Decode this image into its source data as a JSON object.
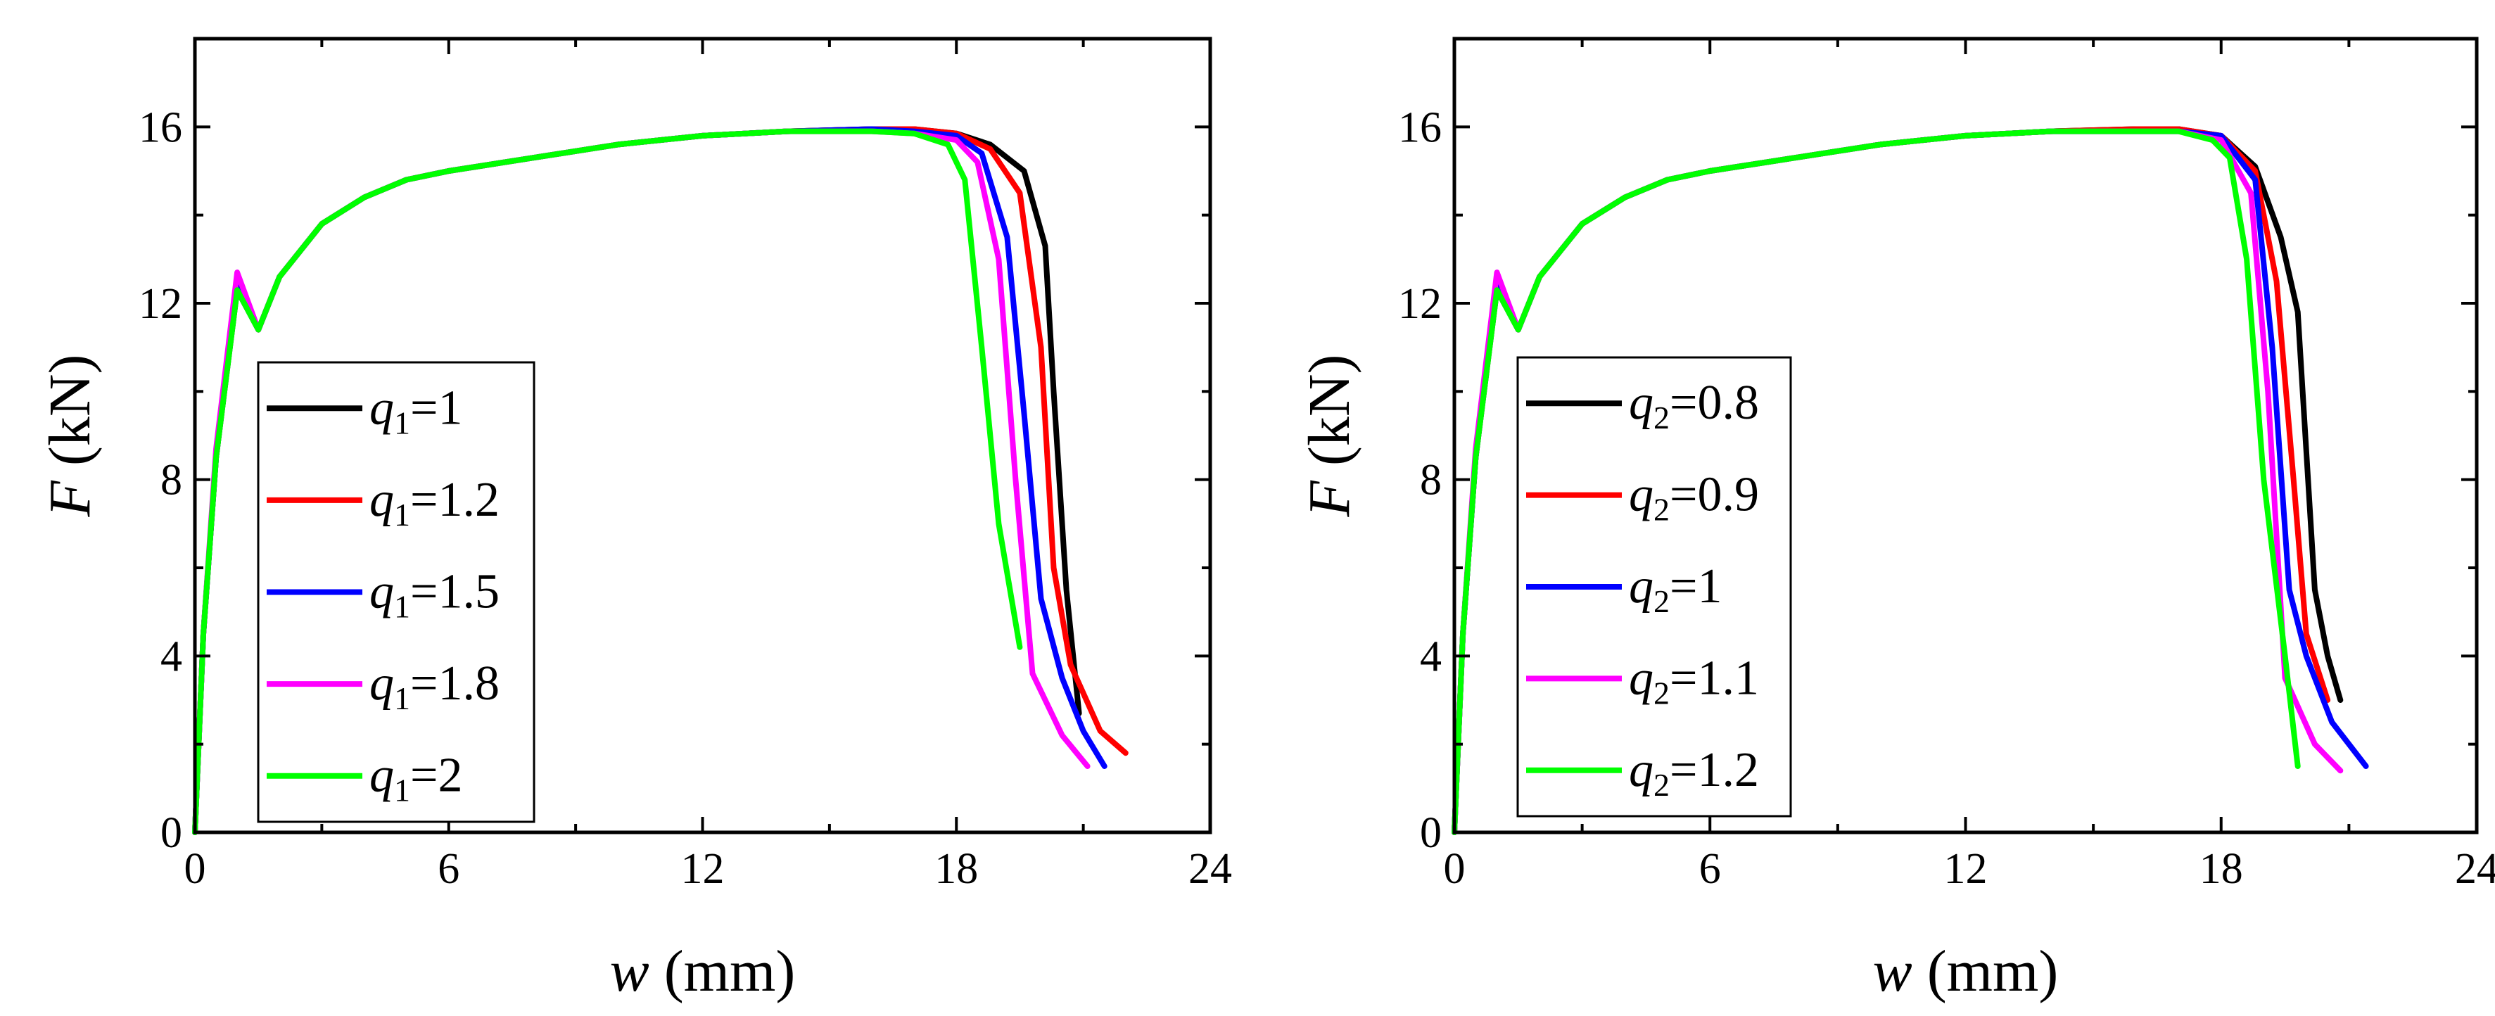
{
  "chart_data": [
    {
      "type": "line",
      "xlabel": {
        "var": "w",
        "unit": " (mm)"
      },
      "ylabel": {
        "var": "F",
        "unit": " (kN)"
      },
      "xlim": [
        0,
        24
      ],
      "ylim": [
        0,
        18
      ],
      "xticks": [
        "0",
        "6",
        "12",
        "18",
        "24"
      ],
      "yticks": [
        "0",
        "4",
        "8",
        "12",
        "16"
      ],
      "legend_position": "lower-left",
      "series": [
        {
          "name": "1",
          "symbol": "q",
          "sub": "1",
          "color": "#000000",
          "x": [
            0,
            0.2,
            0.5,
            1.0,
            1.5,
            2.0,
            3.0,
            4.0,
            5.0,
            6.0,
            8.0,
            10.0,
            12.0,
            14.0,
            16.0,
            17.0,
            18.0,
            18.8,
            19.6,
            20.1,
            20.3,
            20.6,
            20.9
          ],
          "y": [
            0,
            4.5,
            8.5,
            12.3,
            11.4,
            12.6,
            13.8,
            14.4,
            14.8,
            15.0,
            15.3,
            15.6,
            15.8,
            15.9,
            15.95,
            15.95,
            15.85,
            15.6,
            15.0,
            13.3,
            10.0,
            5.5,
            2.7
          ]
        },
        {
          "name": "1.2",
          "symbol": "q",
          "sub": "1",
          "color": "#ff0000",
          "x": [
            0,
            0.2,
            0.5,
            1.0,
            1.5,
            2.0,
            3.0,
            4.0,
            5.0,
            6.0,
            8.0,
            10.0,
            12.0,
            14.0,
            16.0,
            17.0,
            18.0,
            18.8,
            19.5,
            20.0,
            20.3,
            20.7,
            21.4,
            22.0
          ],
          "y": [
            0,
            4.5,
            8.5,
            12.4,
            11.4,
            12.6,
            13.8,
            14.4,
            14.8,
            15.0,
            15.3,
            15.6,
            15.8,
            15.9,
            15.95,
            15.95,
            15.85,
            15.5,
            14.5,
            11.0,
            6.0,
            3.8,
            2.3,
            1.8
          ]
        },
        {
          "name": "1.5",
          "symbol": "q",
          "sub": "1",
          "color": "#0000ff",
          "x": [
            0,
            0.2,
            0.5,
            1.0,
            1.5,
            2.0,
            3.0,
            4.0,
            5.0,
            6.0,
            8.0,
            10.0,
            12.0,
            14.0,
            16.0,
            17.0,
            18.0,
            18.6,
            19.2,
            19.6,
            20.0,
            20.5,
            21.0,
            21.5
          ],
          "y": [
            0,
            4.5,
            8.5,
            12.4,
            11.4,
            12.6,
            13.8,
            14.4,
            14.8,
            15.0,
            15.3,
            15.6,
            15.8,
            15.9,
            15.95,
            15.9,
            15.8,
            15.4,
            13.5,
            9.5,
            5.3,
            3.5,
            2.3,
            1.5
          ]
        },
        {
          "name": "1.8",
          "symbol": "q",
          "sub": "1",
          "color": "#ff00ff",
          "x": [
            0,
            0.2,
            0.5,
            1.0,
            1.5,
            2.0,
            3.0,
            4.0,
            5.0,
            6.0,
            8.0,
            10.0,
            12.0,
            14.0,
            16.0,
            17.0,
            18.0,
            18.5,
            19.0,
            19.4,
            19.8,
            20.5,
            21.1
          ],
          "y": [
            0,
            4.5,
            8.7,
            12.7,
            11.4,
            12.6,
            13.8,
            14.4,
            14.8,
            15.0,
            15.3,
            15.6,
            15.8,
            15.9,
            15.9,
            15.85,
            15.7,
            15.2,
            13.0,
            8.0,
            3.6,
            2.2,
            1.5
          ]
        },
        {
          "name": "2",
          "symbol": "q",
          "sub": "1",
          "color": "#00ff00",
          "x": [
            0,
            0.2,
            0.5,
            1.0,
            1.5,
            2.0,
            3.0,
            4.0,
            5.0,
            6.0,
            8.0,
            10.0,
            12.0,
            14.0,
            16.0,
            17.0,
            17.8,
            18.2,
            18.6,
            19.0,
            19.5
          ],
          "y": [
            0,
            4.5,
            8.5,
            12.3,
            11.4,
            12.6,
            13.8,
            14.4,
            14.8,
            15.0,
            15.3,
            15.6,
            15.8,
            15.9,
            15.9,
            15.85,
            15.6,
            14.8,
            11.0,
            7.0,
            4.2
          ]
        }
      ]
    },
    {
      "type": "line",
      "xlabel": {
        "var": "w",
        "unit": " (mm)"
      },
      "ylabel": {
        "var": "F",
        "unit": " (kN)"
      },
      "xlim": [
        0,
        24
      ],
      "ylim": [
        0,
        18
      ],
      "xticks": [
        "0",
        "6",
        "12",
        "18",
        "24"
      ],
      "yticks": [
        "0",
        "4",
        "8",
        "12",
        "16"
      ],
      "legend_position": "lower-left",
      "series": [
        {
          "name": "0.8",
          "symbol": "q",
          "sub": "2",
          "color": "#000000",
          "x": [
            0,
            0.2,
            0.5,
            1.0,
            1.5,
            2.0,
            3.0,
            4.0,
            5.0,
            6.0,
            8.0,
            10.0,
            12.0,
            14.0,
            16.0,
            17.0,
            18.0,
            18.8,
            19.4,
            19.8,
            20.2,
            20.5,
            20.8
          ],
          "y": [
            0,
            4.5,
            8.5,
            12.3,
            11.4,
            12.6,
            13.8,
            14.4,
            14.8,
            15.0,
            15.3,
            15.6,
            15.8,
            15.9,
            15.95,
            15.95,
            15.8,
            15.1,
            13.5,
            11.8,
            5.5,
            4.0,
            3.0
          ]
        },
        {
          "name": "0.9",
          "symbol": "q",
          "sub": "2",
          "color": "#ff0000",
          "x": [
            0,
            0.2,
            0.5,
            1.0,
            1.5,
            2.0,
            3.0,
            4.0,
            5.0,
            6.0,
            8.0,
            10.0,
            12.0,
            14.0,
            16.0,
            17.0,
            18.0,
            18.8,
            19.3,
            19.7,
            20.0,
            20.5
          ],
          "y": [
            0,
            4.5,
            8.5,
            12.4,
            11.4,
            12.6,
            13.8,
            14.4,
            14.8,
            15.0,
            15.3,
            15.6,
            15.8,
            15.9,
            15.95,
            15.95,
            15.8,
            15.0,
            12.5,
            8.0,
            4.5,
            3.0
          ]
        },
        {
          "name": "1",
          "symbol": "q",
          "sub": "2",
          "color": "#0000ff",
          "x": [
            0,
            0.2,
            0.5,
            1.0,
            1.5,
            2.0,
            3.0,
            4.0,
            5.0,
            6.0,
            8.0,
            10.0,
            12.0,
            14.0,
            16.0,
            17.0,
            18.0,
            18.8,
            19.2,
            19.6,
            20.0,
            20.6,
            21.4
          ],
          "y": [
            0,
            4.5,
            8.5,
            12.4,
            11.4,
            12.6,
            13.8,
            14.4,
            14.8,
            15.0,
            15.3,
            15.6,
            15.8,
            15.9,
            15.9,
            15.9,
            15.8,
            14.8,
            11.0,
            5.5,
            4.0,
            2.5,
            1.5
          ]
        },
        {
          "name": "1.1",
          "symbol": "q",
          "sub": "2",
          "color": "#ff00ff",
          "x": [
            0,
            0.2,
            0.5,
            1.0,
            1.5,
            2.0,
            3.0,
            4.0,
            5.0,
            6.0,
            8.0,
            10.0,
            12.0,
            14.0,
            16.0,
            17.0,
            18.0,
            18.7,
            19.1,
            19.5,
            20.2,
            20.8
          ],
          "y": [
            0,
            4.5,
            8.7,
            12.7,
            11.4,
            12.6,
            13.8,
            14.4,
            14.8,
            15.0,
            15.3,
            15.6,
            15.8,
            15.9,
            15.9,
            15.9,
            15.7,
            14.5,
            10.0,
            3.5,
            2.0,
            1.4
          ]
        },
        {
          "name": "1.2",
          "symbol": "q",
          "sub": "2",
          "color": "#00ff00",
          "x": [
            0,
            0.2,
            0.5,
            1.0,
            1.5,
            2.0,
            3.0,
            4.0,
            5.0,
            6.0,
            8.0,
            10.0,
            12.0,
            14.0,
            16.0,
            17.0,
            17.8,
            18.2,
            18.6,
            19.0,
            19.5,
            19.8
          ],
          "y": [
            0,
            4.5,
            8.5,
            12.3,
            11.4,
            12.6,
            13.8,
            14.4,
            14.8,
            15.0,
            15.3,
            15.6,
            15.8,
            15.9,
            15.9,
            15.9,
            15.7,
            15.3,
            13.0,
            8.0,
            4.0,
            1.5
          ]
        }
      ]
    }
  ]
}
